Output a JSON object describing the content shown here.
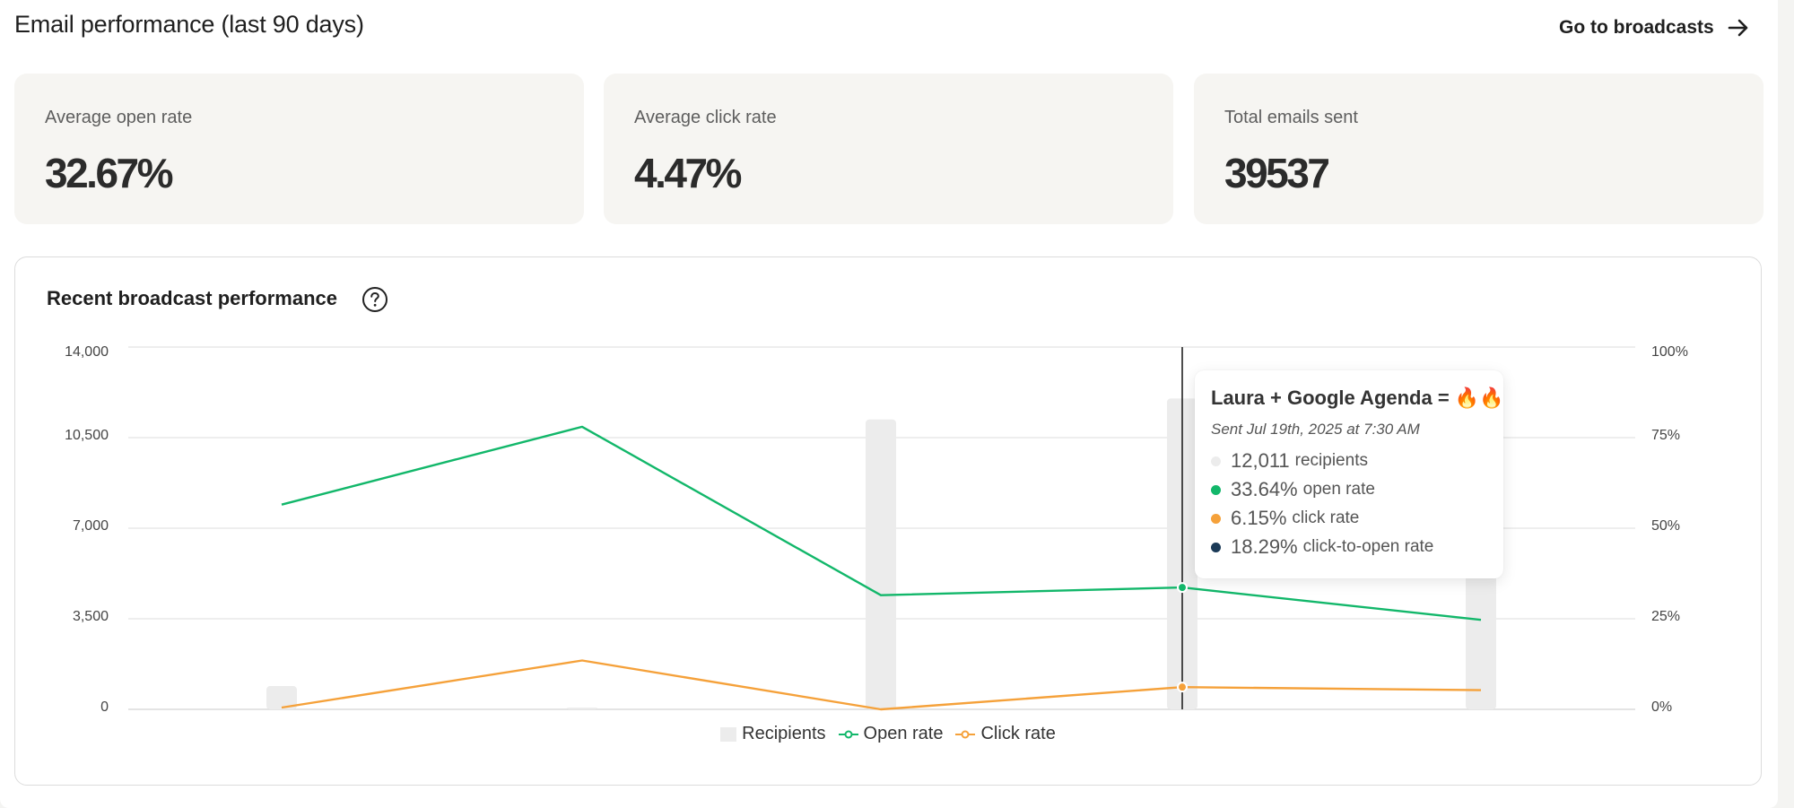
{
  "header": {
    "title": "Email performance (last 90 days)",
    "link_label": "Go to broadcasts",
    "link_icon": "arrow-right-icon"
  },
  "stats": [
    {
      "label": "Average open rate",
      "value": "32.67%"
    },
    {
      "label": "Average click rate",
      "value": "4.47%"
    },
    {
      "label": "Total emails sent",
      "value": "39537"
    }
  ],
  "chart_card": {
    "title": "Recent broadcast performance",
    "help_icon": "question-circle-icon"
  },
  "chart_data": {
    "type": "bar",
    "title": "Recent broadcast performance",
    "categories": [
      "",
      "",
      "",
      "",
      ""
    ],
    "series": [
      {
        "name": "Recipients",
        "type": "bar",
        "axis": "left",
        "values": [
          900,
          50,
          11200,
          12011,
          11800
        ],
        "color": "#ececec"
      },
      {
        "name": "Open rate",
        "type": "line",
        "axis": "right",
        "values": [
          56.5,
          78,
          31.5,
          33.64,
          24.7
        ],
        "color": "#12b76a"
      },
      {
        "name": "Click rate",
        "type": "line",
        "axis": "right",
        "values": [
          0.5,
          13.5,
          0,
          6.15,
          5.3
        ],
        "color": "#f5a13a"
      }
    ],
    "y_left": {
      "min": 0,
      "max": 14000,
      "ticks": [
        "14,000",
        "10,500",
        "7,000",
        "3,500",
        "0"
      ]
    },
    "y_right": {
      "min": 0,
      "max": 100,
      "ticks": [
        "100%",
        "75%",
        "50%",
        "25%",
        "0%"
      ]
    },
    "grid": true,
    "legend_position": "bottom-center",
    "highlight_index": 3
  },
  "legend": [
    {
      "label": "Recipients",
      "swatch": "bar"
    },
    {
      "label": "Open rate",
      "swatch": "line",
      "color": "#12b76a"
    },
    {
      "label": "Click rate",
      "swatch": "line",
      "color": "#f5a13a"
    }
  ],
  "tooltip": {
    "title": "Laura + Google Agenda = 🔥🔥",
    "subtitle": "Sent Jul 19th, 2025 at 7:30 AM",
    "rows": [
      {
        "value": "12,011",
        "label": "recipients",
        "color": "#ececec"
      },
      {
        "value": "33.64%",
        "label": "open rate",
        "color": "#12b76a"
      },
      {
        "value": "6.15%",
        "label": "click rate",
        "color": "#f5a13a"
      },
      {
        "value": "18.29%",
        "label": "click-to-open rate",
        "color": "#1b3a57"
      }
    ]
  }
}
